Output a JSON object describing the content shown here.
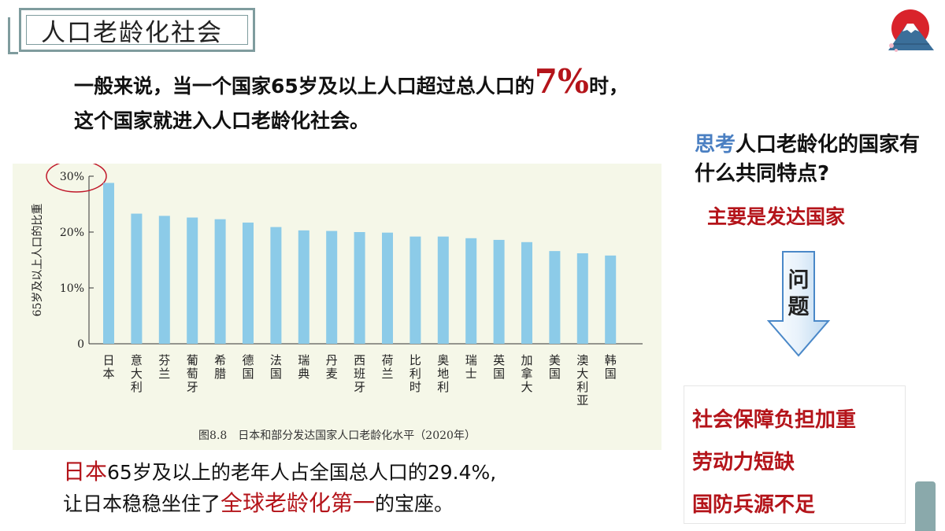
{
  "slide": {
    "title": "人口老龄化社会",
    "lead_line1_a": "一般来说，当一个国家65岁及以上人口超过总人口的",
    "lead_line1_big": "7%",
    "lead_line1_b": "时，",
    "lead_line2": "这个国家就进入人口老龄化社会。",
    "think_blue": "思考",
    "think_rest": "人口老龄化的国家有什么共同特点?",
    "answer": "主要是发达国家",
    "arrow_label": "问题",
    "impacts": [
      "社会保障负担加重",
      "劳动力短缺",
      "国防兵源不足"
    ],
    "bottom_red_1": "日本",
    "bottom_line1": "65岁及以上的老年人占全国总人口的29.4%,",
    "bottom_line2_a": "让日本稳稳坐住了",
    "bottom_red_2": "全球老龄化第一",
    "bottom_line2_b": "的宝座。",
    "colors": {
      "accent_red": "#b4141a",
      "accent_blue": "#4a7fc2",
      "bar": "#8ccbe8",
      "frame": "#7f9c9e"
    }
  },
  "chart_data": {
    "type": "bar",
    "caption": "图8.8　日本和部分发达国家人口老龄化水平（2020年）",
    "ylabel": "65岁及以上人口的比重",
    "ylim": [
      0,
      30
    ],
    "yticks": [
      "0",
      "10%",
      "20%",
      "30%"
    ],
    "ytick_values": [
      0,
      10,
      20,
      30
    ],
    "categories": [
      "日本",
      "意大利",
      "芬兰",
      "葡萄牙",
      "希腊",
      "德国",
      "法国",
      "瑞典",
      "丹麦",
      "西班牙",
      "荷兰",
      "比利时",
      "奥地利",
      "瑞士",
      "英国",
      "加拿大",
      "美国",
      "澳大利亚",
      "韩国"
    ],
    "values": [
      28.8,
      23.3,
      22.9,
      22.6,
      22.3,
      21.7,
      20.9,
      20.3,
      20.2,
      20.0,
      19.9,
      19.2,
      19.2,
      18.9,
      18.6,
      18.2,
      16.6,
      16.2,
      15.8
    ],
    "highlight": "30%"
  }
}
